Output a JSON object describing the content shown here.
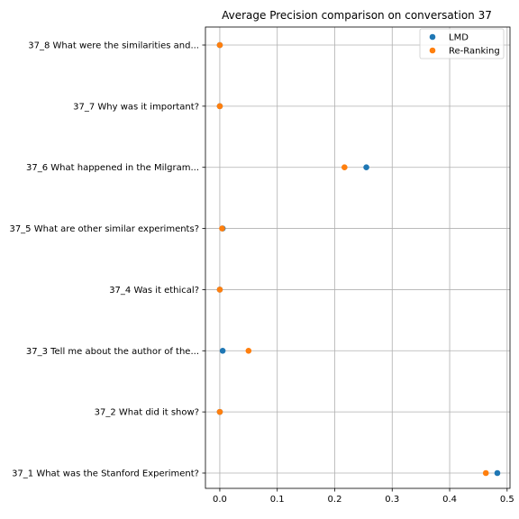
{
  "chart_data": {
    "type": "scatter",
    "title": "Average Precision comparison on conversation 37",
    "xlabel": "",
    "ylabel": "",
    "xlim": [
      -0.025,
      0.505
    ],
    "xticks": [
      "0.0",
      "0.1",
      "0.2",
      "0.3",
      "0.4",
      "0.5"
    ],
    "grid": true,
    "legend_position": "top-right",
    "categories": [
      "37_1 What was the Stanford Experiment?",
      "37_2 What did it show?",
      "37_3 Tell me about the author of the...",
      "37_4 Was it ethical?",
      "37_5 What are other similar experiments?",
      "37_6 What happened in the Milgram...",
      "37_7 Why was it important?",
      "37_8 What were the similarities and..."
    ],
    "series": [
      {
        "name": "LMD",
        "color": "#1f77b4",
        "values": [
          0.483,
          0.0,
          0.005,
          0.0,
          0.005,
          0.255,
          0.0,
          0.0
        ]
      },
      {
        "name": "Re-Ranking",
        "color": "#ff7f0e",
        "values": [
          0.463,
          0.0,
          0.05,
          0.0,
          0.004,
          0.217,
          0.0,
          0.0
        ]
      }
    ]
  }
}
